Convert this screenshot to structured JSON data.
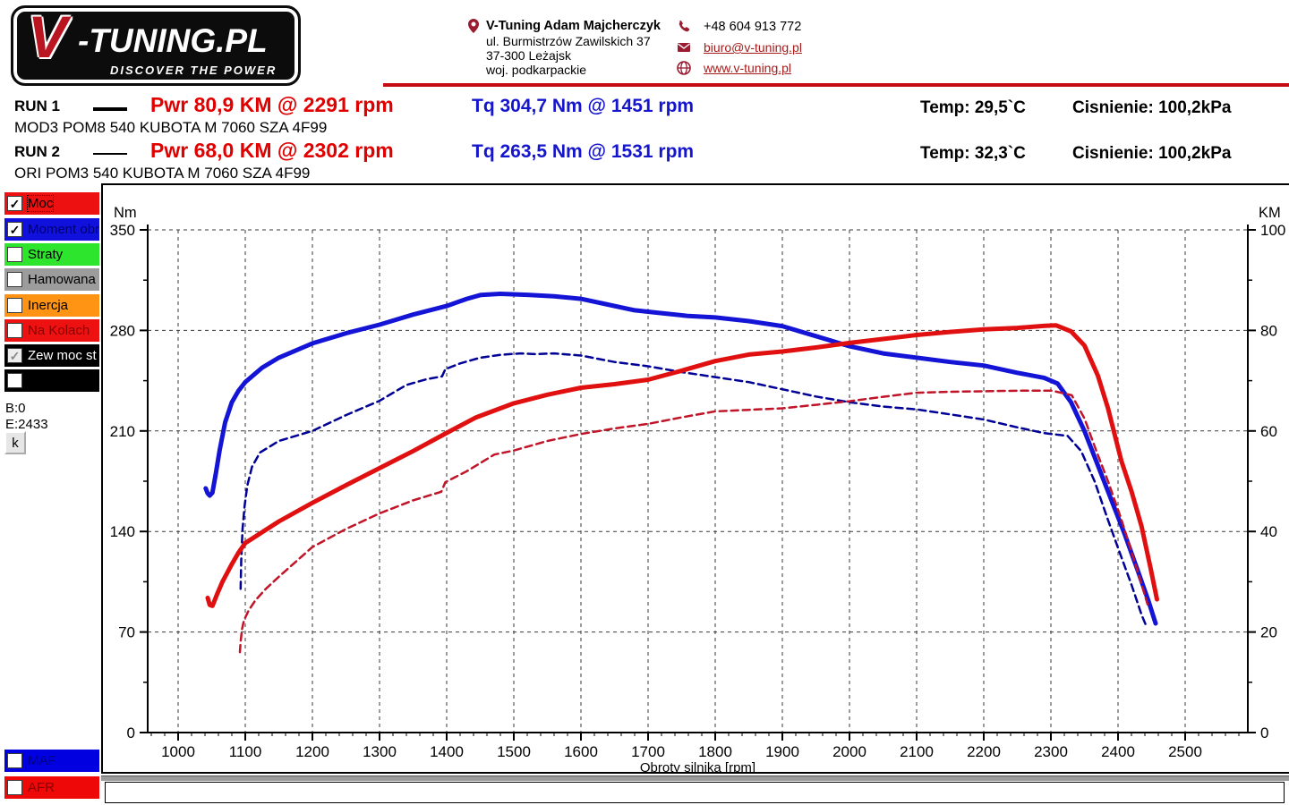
{
  "header": {
    "logo": {
      "v": "V",
      "main": "-TUNING.PL",
      "tagline": "DISCOVER THE POWER"
    },
    "contact": {
      "name": "V-Tuning Adam Majcherczyk",
      "address1": "ul. Burmistrzów Zawilskich 37",
      "address2": "37-300 Leżajsk",
      "address3": "woj. podkarpackie",
      "phone": "+48 604 913 772",
      "email": "biuro@v-tuning.pl",
      "website": "www.v-tuning.pl"
    }
  },
  "runs": [
    {
      "label": "RUN 1",
      "power": "Pwr  80,9 KM @ 2291 rpm",
      "torque": "Tq 304,7 Nm @ 1451 rpm",
      "temp": "Temp: 29,5`C",
      "pressure": "Cisnienie: 100,2kPa",
      "desc": "MOD3 POM8 540 KUBOTA M 7060 SZA 4F99"
    },
    {
      "label": "RUN 2",
      "power": "Pwr  68,0 KM @ 2302 rpm",
      "torque": "Tq 263,5 Nm @ 1531 rpm",
      "temp": "Temp: 32,3`C",
      "pressure": "Cisnienie: 100,2kPa",
      "desc": "ORI POM3 540 KUBOTA M 7060 SZA 4F99"
    }
  ],
  "sidebar": {
    "items": [
      {
        "label": "Moc",
        "color": "#ee1111",
        "text_color": "#000000",
        "check": "✓",
        "check_color": "#000000"
      },
      {
        "label": "Moment obr",
        "color": "#1111dd",
        "text_color": "#000070",
        "check": "✓",
        "check_color": "#000000"
      },
      {
        "label": "Straty",
        "color": "#2de52d",
        "text_color": "#000000",
        "check": "",
        "check_color": "#000000"
      },
      {
        "label": "Hamowana",
        "color": "#9c9c9c",
        "text_color": "#000000",
        "check": "",
        "check_color": "#000000"
      },
      {
        "label": "Inercja",
        "color": "#ff9414",
        "text_color": "#000000",
        "check": "",
        "check_color": "#000000"
      },
      {
        "label": "Na Kolach",
        "color": "#ee1111",
        "text_color": "#8b0000",
        "check": "",
        "check_color": "#000000"
      },
      {
        "label": "Zew moc st",
        "color": "#000000",
        "text_color": "#ffffff",
        "check": "✓",
        "check_color": "#8a8a8a"
      },
      {
        "label": "",
        "color": "#000000",
        "text_color": "#ffffff",
        "check": "",
        "check_color": "#000000"
      }
    ],
    "b_value": "B:0",
    "e_value": "E:2433",
    "k_button": "k",
    "bottom_items": [
      {
        "label": "MAF",
        "color": "#0000e0",
        "text_color": "#000080",
        "check": ""
      },
      {
        "label": "AFR",
        "color": "#ee0808",
        "text_color": "#8b0000",
        "check": ""
      }
    ]
  },
  "status_bar": {
    "text": ""
  },
  "chart_data": {
    "type": "line",
    "xlabel": "Obroty silnika [rpm]",
    "y_left_label": "Nm",
    "y_right_label": "KM",
    "x_ticks": [
      1000,
      1100,
      1200,
      1300,
      1400,
      1500,
      1600,
      1700,
      1800,
      1900,
      2000,
      2100,
      2200,
      2300,
      2400,
      2500
    ],
    "x_minor_step": 20,
    "y_left_ticks": [
      0,
      70,
      140,
      210,
      280,
      350
    ],
    "y_left_minor_step": 35,
    "y_right_ticks": [
      0,
      20,
      40,
      60,
      80,
      100
    ],
    "y_left_lim": [
      0,
      350
    ],
    "y_right_lim": [
      0,
      100
    ],
    "xlim": [
      957,
      2593
    ],
    "grid": true,
    "series": [
      {
        "name": "RUN 1 Moment obrotowy [Nm]",
        "axis": "left",
        "color": "#1414d6",
        "style": "solid",
        "width": 5,
        "points": [
          [
            1041,
            170
          ],
          [
            1044,
            166.5
          ],
          [
            1047,
            165
          ],
          [
            1051,
            167
          ],
          [
            1056,
            180
          ],
          [
            1062,
            197
          ],
          [
            1070,
            216
          ],
          [
            1080,
            230
          ],
          [
            1090,
            238
          ],
          [
            1100,
            244
          ],
          [
            1125,
            254
          ],
          [
            1150,
            261
          ],
          [
            1200,
            271
          ],
          [
            1250,
            278
          ],
          [
            1300,
            284
          ],
          [
            1350,
            291
          ],
          [
            1400,
            297
          ],
          [
            1430,
            302
          ],
          [
            1451,
            304.7
          ],
          [
            1480,
            305.5
          ],
          [
            1520,
            304.8
          ],
          [
            1560,
            303.8
          ],
          [
            1600,
            302
          ],
          [
            1640,
            298
          ],
          [
            1680,
            294
          ],
          [
            1720,
            292
          ],
          [
            1760,
            290
          ],
          [
            1800,
            289
          ],
          [
            1850,
            286.5
          ],
          [
            1900,
            283
          ],
          [
            1950,
            276
          ],
          [
            2000,
            269
          ],
          [
            2050,
            264
          ],
          [
            2100,
            261
          ],
          [
            2150,
            258
          ],
          [
            2200,
            255.5
          ],
          [
            2250,
            250.5
          ],
          [
            2290,
            247
          ],
          [
            2310,
            243
          ],
          [
            2330,
            230
          ],
          [
            2350,
            210
          ],
          [
            2370,
            186
          ],
          [
            2390,
            162
          ],
          [
            2410,
            138
          ],
          [
            2430,
            112
          ],
          [
            2445,
            92
          ],
          [
            2456,
            76
          ]
        ]
      },
      {
        "name": "RUN 2 Moment obrotowy [Nm]",
        "axis": "left",
        "color": "#000096",
        "style": "dashed",
        "width": 2.5,
        "points": [
          [
            1093,
            100
          ],
          [
            1094,
            120
          ],
          [
            1096,
            142
          ],
          [
            1099,
            158
          ],
          [
            1103,
            172
          ],
          [
            1110,
            185
          ],
          [
            1122,
            195
          ],
          [
            1150,
            203
          ],
          [
            1200,
            210
          ],
          [
            1250,
            221
          ],
          [
            1300,
            231
          ],
          [
            1340,
            242
          ],
          [
            1370,
            246
          ],
          [
            1393,
            248
          ],
          [
            1398,
            253
          ],
          [
            1420,
            257
          ],
          [
            1450,
            261
          ],
          [
            1480,
            263
          ],
          [
            1510,
            264
          ],
          [
            1531,
            263.5
          ],
          [
            1560,
            264
          ],
          [
            1600,
            262.5
          ],
          [
            1650,
            258
          ],
          [
            1700,
            255
          ],
          [
            1750,
            251
          ],
          [
            1800,
            247.5
          ],
          [
            1850,
            244
          ],
          [
            1900,
            239
          ],
          [
            1950,
            234
          ],
          [
            2000,
            230
          ],
          [
            2050,
            227
          ],
          [
            2100,
            225
          ],
          [
            2150,
            221.5
          ],
          [
            2200,
            218
          ],
          [
            2250,
            212.5
          ],
          [
            2290,
            208.5
          ],
          [
            2325,
            206.5
          ],
          [
            2345,
            196
          ],
          [
            2365,
            175
          ],
          [
            2385,
            148
          ],
          [
            2405,
            122
          ],
          [
            2420,
            103
          ],
          [
            2435,
            82
          ],
          [
            2443,
            73
          ]
        ]
      },
      {
        "name": "RUN 1 Moc [KM]",
        "axis": "right",
        "color": "#e01010",
        "style": "solid",
        "width": 5,
        "points": [
          [
            1044,
            26.8
          ],
          [
            1047,
            25.4
          ],
          [
            1051,
            25.2
          ],
          [
            1058,
            27.5
          ],
          [
            1066,
            30
          ],
          [
            1080,
            33.5
          ],
          [
            1090,
            35.8
          ],
          [
            1100,
            37.7
          ],
          [
            1150,
            42
          ],
          [
            1200,
            45.7
          ],
          [
            1250,
            49.2
          ],
          [
            1300,
            52.6
          ],
          [
            1350,
            56
          ],
          [
            1400,
            59.6
          ],
          [
            1444,
            62.7
          ],
          [
            1500,
            65.5
          ],
          [
            1550,
            67.2
          ],
          [
            1600,
            68.6
          ],
          [
            1650,
            69.3
          ],
          [
            1700,
            70.2
          ],
          [
            1750,
            72
          ],
          [
            1800,
            73.9
          ],
          [
            1850,
            75.2
          ],
          [
            1900,
            75.8
          ],
          [
            1950,
            76.6
          ],
          [
            2000,
            77.5
          ],
          [
            2050,
            78.3
          ],
          [
            2100,
            79.1
          ],
          [
            2150,
            79.7
          ],
          [
            2200,
            80.2
          ],
          [
            2250,
            80.5
          ],
          [
            2291,
            80.9
          ],
          [
            2308,
            81
          ],
          [
            2330,
            79.8
          ],
          [
            2350,
            77
          ],
          [
            2370,
            71
          ],
          [
            2385,
            64.5
          ],
          [
            2405,
            54
          ],
          [
            2420,
            48
          ],
          [
            2435,
            41
          ],
          [
            2448,
            33
          ],
          [
            2458,
            26.5
          ]
        ]
      },
      {
        "name": "RUN 2 Moc [KM]",
        "axis": "right",
        "color": "#c01428",
        "style": "dashed",
        "width": 2.5,
        "points": [
          [
            1092,
            16
          ],
          [
            1093,
            18
          ],
          [
            1095,
            20.5
          ],
          [
            1098,
            22.3
          ],
          [
            1105,
            24.3
          ],
          [
            1115,
            26.3
          ],
          [
            1130,
            28.5
          ],
          [
            1150,
            31
          ],
          [
            1200,
            36.9
          ],
          [
            1250,
            40.5
          ],
          [
            1300,
            43.6
          ],
          [
            1350,
            46.2
          ],
          [
            1392,
            47.9
          ],
          [
            1398,
            49.8
          ],
          [
            1430,
            52
          ],
          [
            1471,
            55.3
          ],
          [
            1500,
            56.1
          ],
          [
            1550,
            58
          ],
          [
            1600,
            59.4
          ],
          [
            1650,
            60.5
          ],
          [
            1700,
            61.4
          ],
          [
            1750,
            62.7
          ],
          [
            1800,
            63.9
          ],
          [
            1850,
            64.2
          ],
          [
            1900,
            64.5
          ],
          [
            1950,
            65.2
          ],
          [
            2000,
            65.9
          ],
          [
            2050,
            66.8
          ],
          [
            2100,
            67.6
          ],
          [
            2150,
            67.8
          ],
          [
            2200,
            67.9
          ],
          [
            2250,
            68
          ],
          [
            2302,
            68
          ],
          [
            2331,
            67.1
          ],
          [
            2350,
            62.5
          ],
          [
            2368,
            55.9
          ],
          [
            2385,
            50
          ],
          [
            2404,
            42.8
          ],
          [
            2420,
            36
          ],
          [
            2435,
            29.5
          ],
          [
            2444,
            25.5
          ]
        ]
      }
    ]
  }
}
